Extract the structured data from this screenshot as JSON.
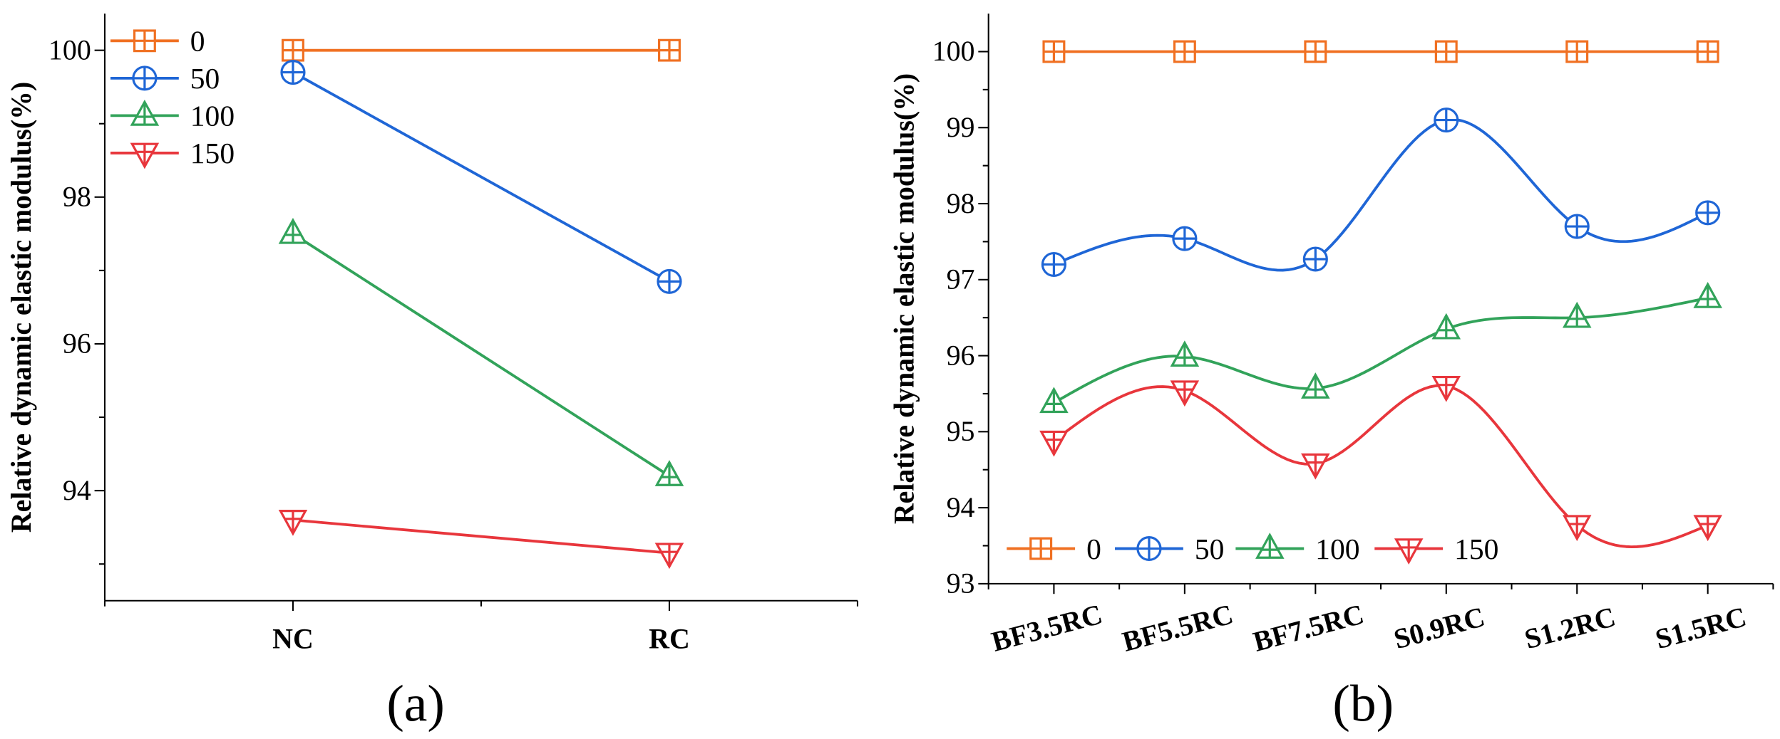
{
  "chart_data": [
    {
      "type": "line",
      "interpolation": "straight",
      "panel_label": "(a)",
      "xlabel": "",
      "ylabel": "Relative dynamic elastic modulus(%)",
      "categories": [
        "NC",
        "RC"
      ],
      "xlim": [
        0.5,
        2.5
      ],
      "ylim": [
        92.5,
        100.5
      ],
      "yticks": [
        94,
        96,
        98,
        100
      ],
      "yminor": [
        93,
        95,
        97,
        99
      ],
      "grid": false,
      "legend": "top-left",
      "series": [
        {
          "name": "0",
          "values": [
            100,
            100
          ],
          "color": "#F07022",
          "marker": "square-plus"
        },
        {
          "name": "50",
          "values": [
            99.7,
            96.85
          ],
          "color": "#1F66D6",
          "marker": "circle-plus"
        },
        {
          "name": "100",
          "values": [
            97.5,
            94.2
          ],
          "color": "#32A35A",
          "marker": "triangle-up"
        },
        {
          "name": "150",
          "values": [
            93.6,
            93.15
          ],
          "color": "#E8363C",
          "marker": "triangle-down"
        }
      ]
    },
    {
      "type": "line",
      "interpolation": "spline",
      "panel_label": "(b)",
      "xlabel": "",
      "ylabel": "Relative dynamic elastic modulus(%)",
      "categories": [
        "BF3.5RC",
        "BF5.5RC",
        "BF7.5RC",
        "S0.9RC",
        "S1.2RC",
        "S1.5RC"
      ],
      "xlim": [
        0.5,
        6.5
      ],
      "ylim": [
        93,
        100.5
      ],
      "yticks": [
        93,
        94,
        95,
        96,
        97,
        98,
        99,
        100
      ],
      "yminor": [
        93.5,
        94.5,
        95.5,
        96.5,
        97.5,
        98.5,
        99.5
      ],
      "grid": false,
      "legend": "bottom-left",
      "series": [
        {
          "name": "0",
          "values": [
            100,
            100,
            100,
            100,
            100,
            100
          ],
          "color": "#F07022",
          "marker": "square-plus"
        },
        {
          "name": "50",
          "values": [
            97.2,
            97.54,
            97.27,
            99.1,
            97.7,
            97.88
          ],
          "color": "#1F66D6",
          "marker": "circle-plus"
        },
        {
          "name": "100",
          "values": [
            95.38,
            95.99,
            95.57,
            96.35,
            96.5,
            96.76
          ],
          "color": "#32A35A",
          "marker": "triangle-up"
        },
        {
          "name": "150",
          "values": [
            94.88,
            95.54,
            94.58,
            95.6,
            93.77,
            93.77
          ],
          "color": "#E8363C",
          "marker": "triangle-down"
        }
      ]
    }
  ]
}
